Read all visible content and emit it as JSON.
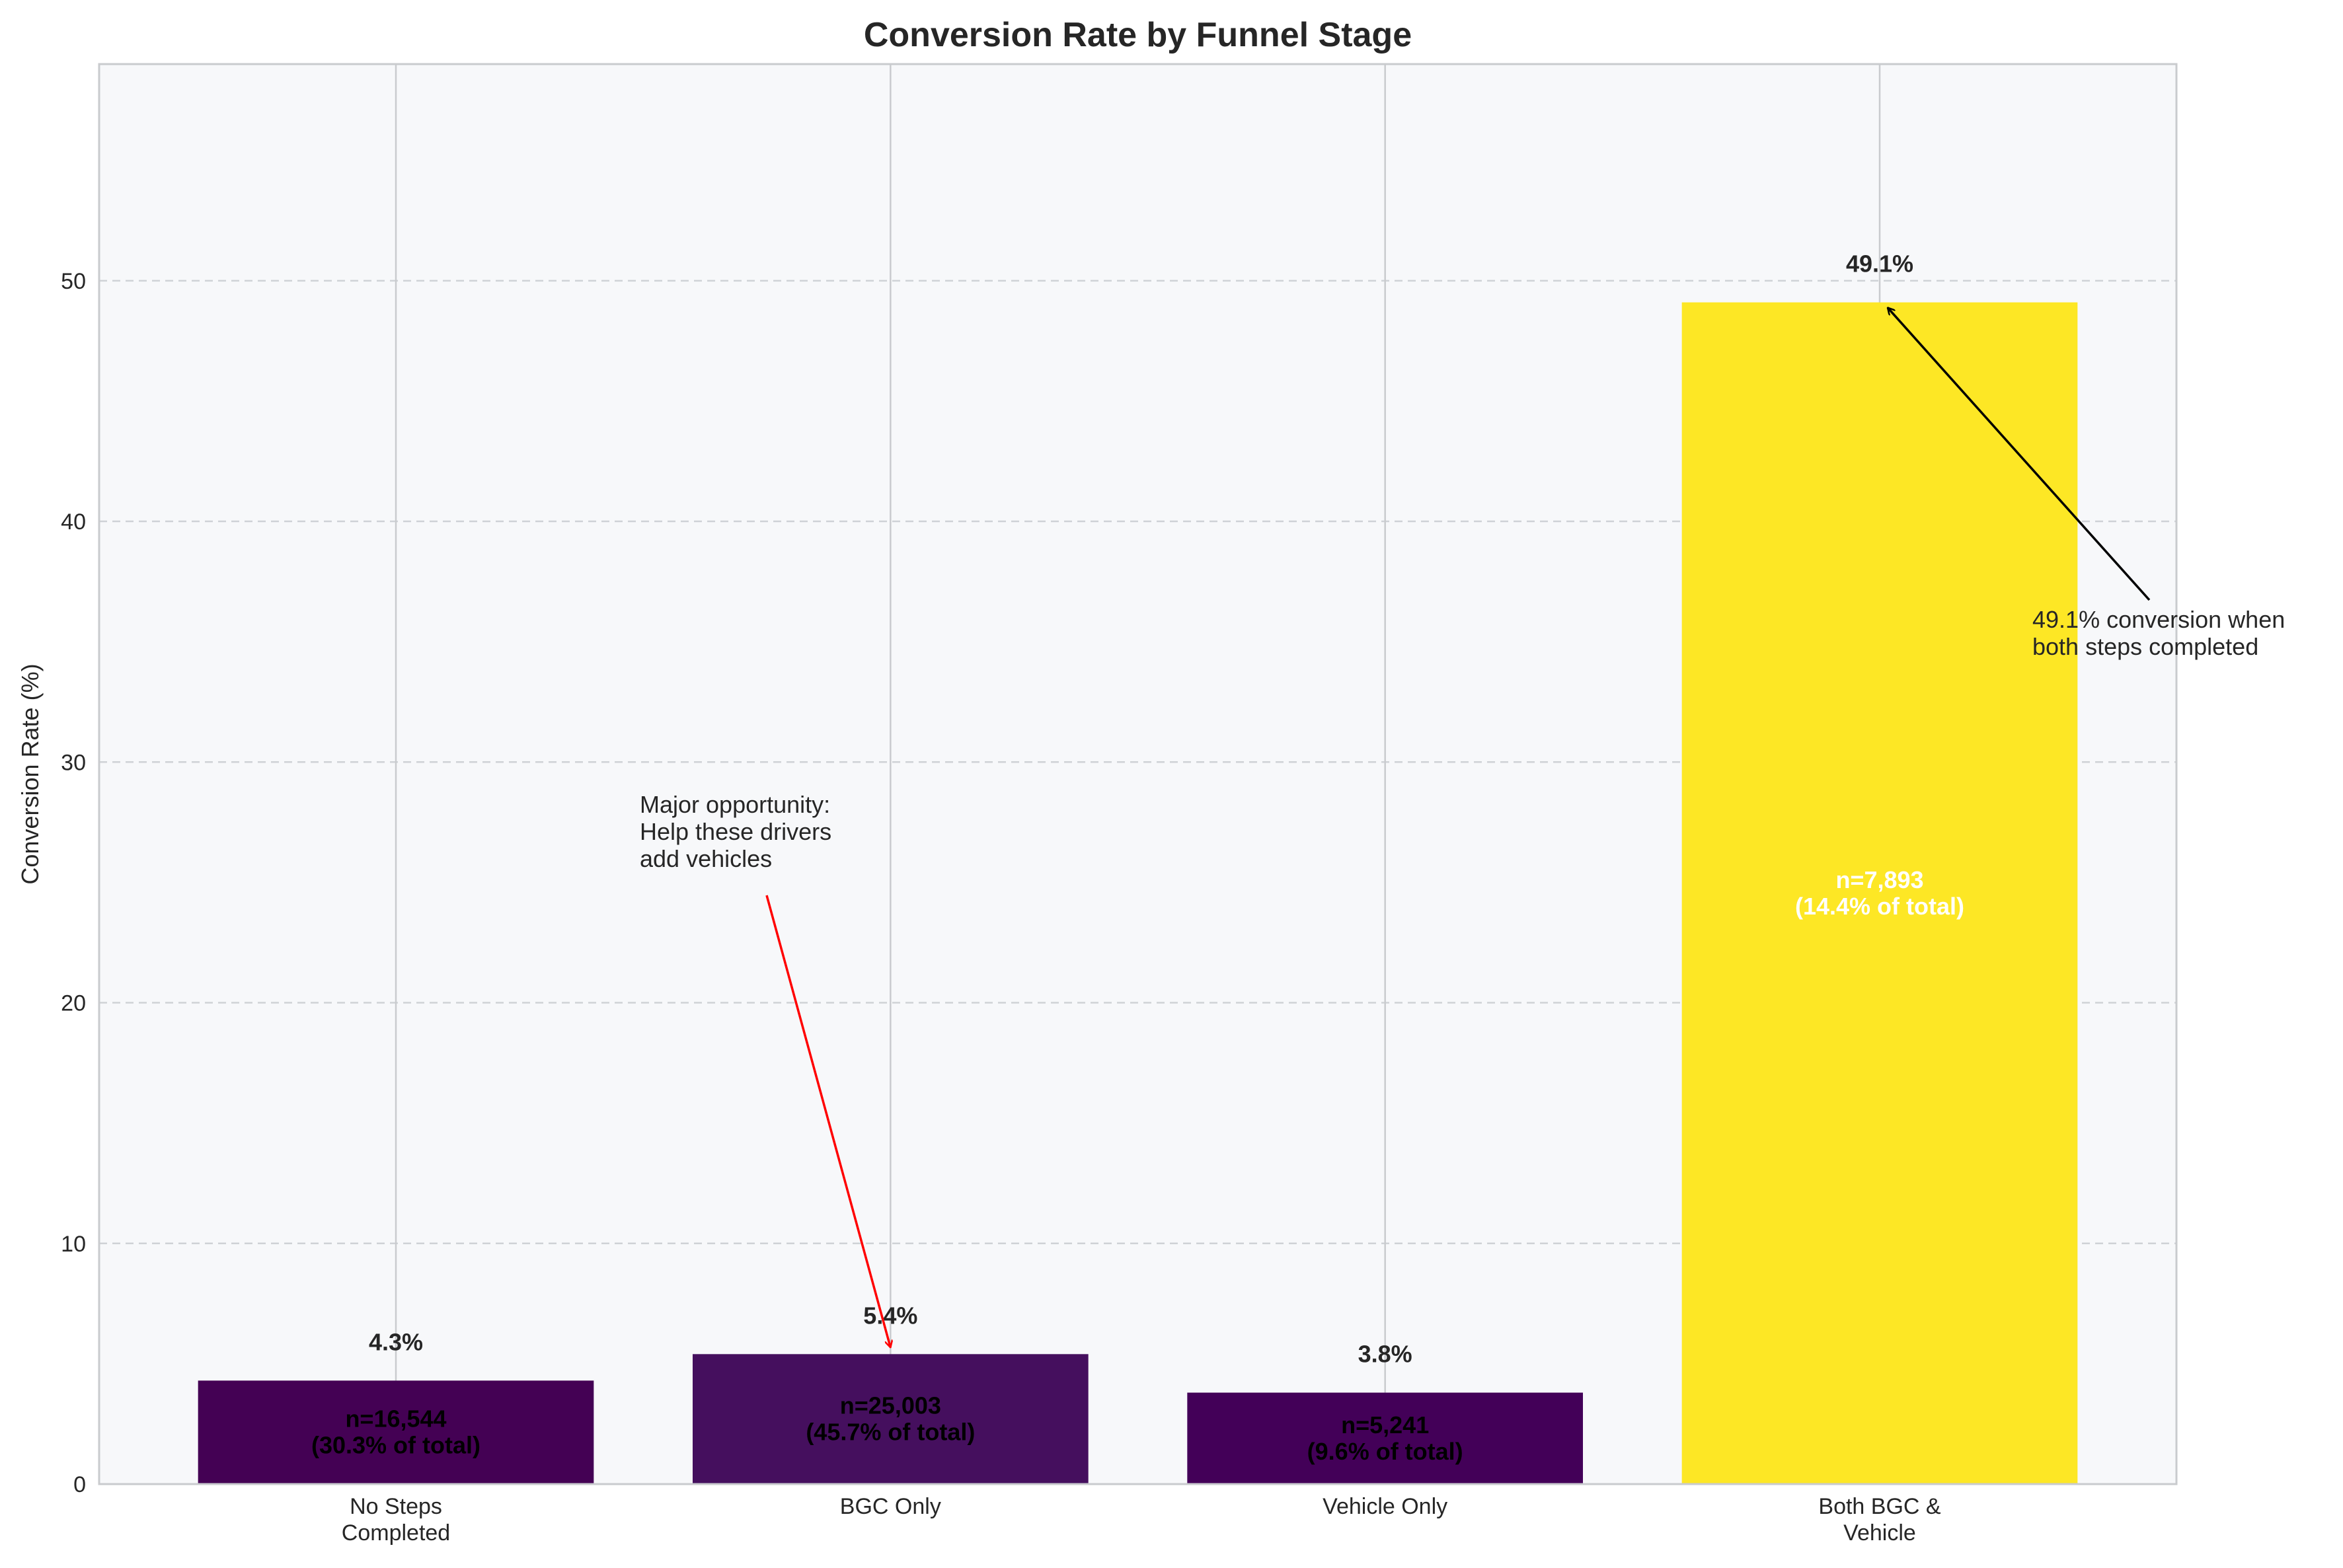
{
  "chart_data": {
    "type": "bar",
    "title": "Conversion Rate by Funnel Stage",
    "xlabel": "",
    "ylabel": "Conversion Rate (%)",
    "ylim": [
      0,
      59
    ],
    "yticks": [
      0,
      10,
      20,
      30,
      40,
      50
    ],
    "grid": "y dashed, x solid at categories",
    "categories": [
      "No Steps\nCompleted",
      "BGC Only",
      "Vehicle Only",
      "Both BGC &\nVehicle"
    ],
    "values": [
      4.3,
      5.4,
      3.8,
      49.1
    ],
    "value_labels": [
      "4.3%",
      "5.4%",
      "3.8%",
      "49.1%"
    ],
    "inside_labels": [
      [
        "n=16,544",
        "(30.3% of total)"
      ],
      [
        "n=25,003",
        "(45.7% of total)"
      ],
      [
        "n=5,241",
        "(9.6% of total)"
      ],
      [
        "n=7,893",
        "(14.4% of total)"
      ]
    ],
    "bar_colors": [
      "#440154",
      "#450f5e",
      "#430058",
      "#fde725"
    ],
    "inside_label_colors": [
      "#000000",
      "#000000",
      "#000000",
      "#ffffff"
    ],
    "annotations": [
      {
        "text": [
          "Major opportunity:",
          "Help these drivers",
          "add vehicles"
        ],
        "target_category": 1,
        "target_value": 5.4,
        "color": "#ff0000"
      },
      {
        "text": [
          "49.1% conversion when",
          "both steps completed"
        ],
        "target_category": 3,
        "target_value": 49.1,
        "color": "#000000"
      }
    ],
    "plot_background": "#f7f8fa"
  }
}
